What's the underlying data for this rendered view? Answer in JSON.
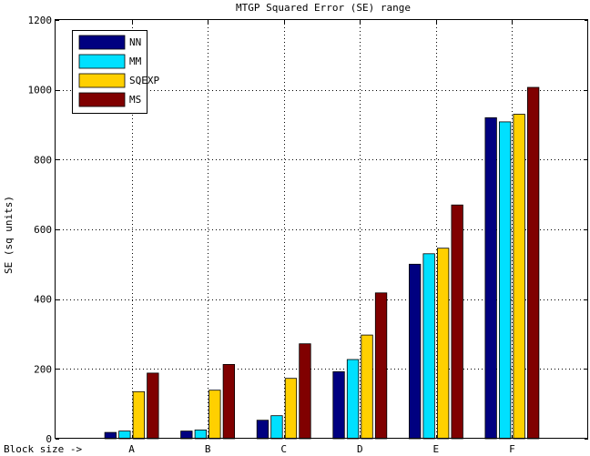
{
  "chart_data": {
    "type": "bar",
    "title": "MTGP Squared Error (SE) range",
    "xlabel": "Block size ->",
    "ylabel": "SE (sq units)",
    "categories": [
      "A",
      "B",
      "C",
      "D",
      "E",
      "F"
    ],
    "ylim": [
      0,
      1200
    ],
    "yticks": [
      0,
      200,
      400,
      600,
      800,
      1000,
      1200
    ],
    "grid": true,
    "legend_position": "top-left",
    "series": [
      {
        "name": "NN",
        "color": "#000080",
        "values": [
          18,
          22,
          53,
          192,
          500,
          920
        ]
      },
      {
        "name": "MM",
        "color": "#00e0ff",
        "values": [
          22,
          25,
          66,
          227,
          530,
          908
        ]
      },
      {
        "name": "SQEXP",
        "color": "#ffd000",
        "values": [
          135,
          139,
          173,
          297,
          546,
          930
        ]
      },
      {
        "name": "MS",
        "color": "#800000",
        "values": [
          188,
          213,
          272,
          418,
          670,
          1007
        ]
      }
    ]
  }
}
